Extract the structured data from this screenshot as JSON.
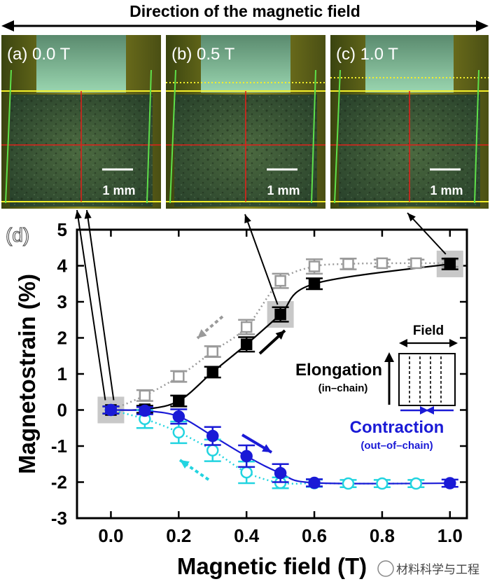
{
  "header": {
    "title": "Direction of the magnetic field"
  },
  "photos": [
    {
      "label": "(a) 0.0 T",
      "scale": "1 mm"
    },
    {
      "label": "(b) 0.5 T",
      "scale": "1 mm"
    },
    {
      "label": "(c) 1.0 T",
      "scale": "1 mm"
    }
  ],
  "panel_label": "(d)",
  "watermark": "材料科学与工程",
  "colors": {
    "black": "#000000",
    "gray": "#9a9a9a",
    "blue": "#1a1ad6",
    "cyan": "#22d4e0",
    "yellow": "#f4ef2a",
    "red": "#e0201a",
    "green": "#5ee04a"
  },
  "chart_data": {
    "type": "scatter",
    "xlabel": "Magnetic field (T)",
    "ylabel": "Magnetostrain (%)",
    "xlim": [
      -0.1,
      1.05
    ],
    "ylim": [
      -3,
      5
    ],
    "xticks": [
      "0.0",
      "0.2",
      "0.4",
      "0.6",
      "0.8",
      "1.0"
    ],
    "yticks": [
      "-3",
      "-2",
      "-1",
      "0",
      "1",
      "2",
      "3",
      "4",
      "5"
    ],
    "series": [
      {
        "name": "Elongation increasing",
        "marker": "filled-square",
        "x": [
          0.0,
          0.1,
          0.2,
          0.3,
          0.4,
          0.5,
          0.6,
          1.0
        ],
        "y": [
          0.0,
          0.02,
          0.25,
          1.05,
          1.82,
          2.65,
          3.5,
          4.05
        ],
        "err": [
          0.1,
          0.1,
          0.15,
          0.15,
          0.2,
          0.2,
          0.15,
          0.15
        ]
      },
      {
        "name": "Elongation decreasing",
        "marker": "open-square",
        "x": [
          0.0,
          0.1,
          0.2,
          0.3,
          0.4,
          0.5,
          0.6,
          0.7,
          0.8,
          0.9,
          1.0
        ],
        "y": [
          0.0,
          0.4,
          0.93,
          1.62,
          2.3,
          3.58,
          3.98,
          4.05,
          4.07,
          4.07,
          4.07
        ],
        "err": [
          0.1,
          0.15,
          0.15,
          0.15,
          0.2,
          0.2,
          0.2,
          0.15,
          0.1,
          0.1,
          0.1
        ]
      },
      {
        "name": "Contraction increasing",
        "marker": "filled-circle",
        "x": [
          0.0,
          0.1,
          0.2,
          0.3,
          0.4,
          0.5,
          0.6,
          1.0
        ],
        "y": [
          0.0,
          -0.02,
          -0.18,
          -0.72,
          -1.28,
          -1.75,
          -2.02,
          -2.03
        ],
        "err": [
          0.1,
          0.1,
          0.2,
          0.25,
          0.3,
          0.25,
          0.1,
          0.1
        ]
      },
      {
        "name": "Contraction decreasing",
        "marker": "open-circle",
        "x": [
          0.0,
          0.1,
          0.2,
          0.3,
          0.4,
          0.5,
          0.6,
          0.7,
          0.8,
          0.9
        ],
        "y": [
          0.0,
          -0.25,
          -0.62,
          -1.12,
          -1.73,
          -2.02,
          -2.03,
          -2.04,
          -2.04,
          -2.04
        ],
        "err": [
          0.1,
          0.25,
          0.3,
          0.3,
          0.3,
          0.15,
          0.1,
          0.1,
          0.1,
          0.1
        ]
      }
    ],
    "highlighted_points": [
      {
        "x": 0.0,
        "y": 0.0
      },
      {
        "x": 0.5,
        "y": 2.65
      },
      {
        "x": 1.0,
        "y": 4.05
      }
    ],
    "annotations": {
      "field": "Field",
      "elongation": "Elongation",
      "elongation_sub": "(in–chain)",
      "contraction": "Contraction",
      "contraction_sub": "(out–of–chain)"
    }
  }
}
